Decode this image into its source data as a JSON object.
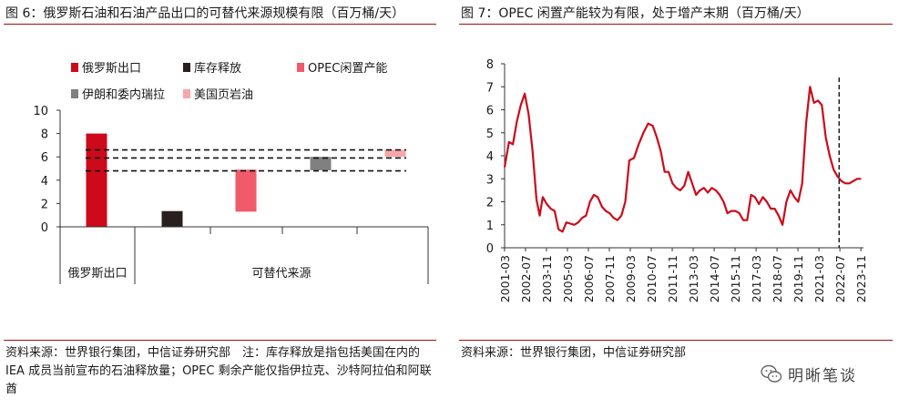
{
  "left": {
    "title": "图 6：俄罗斯石油和石油产品出口的可替代来源规模有限（百万桶/天）",
    "source": "资料来源：世界银行集团，中信证券研究部　注：库存释放是指包括美国在内的 IEA 成员当前宣布的石油释放量；OPEC 剩余产能仅指伊拉克、沙特阿拉伯和阿联酋"
  },
  "right": {
    "title": "图 7：OPEC 闲置产能较为有限，处于增产末期（百万桶/天）",
    "source": "资料来源：世界银行集团，中信证券研究部"
  },
  "watermark": {
    "text": "明晰笔谈",
    "icon": "wechat-icon"
  },
  "chart_data": [
    {
      "type": "bar",
      "subtype": "waterfall",
      "ylim": [
        0,
        10
      ],
      "yticks": [
        "0",
        "2",
        "4",
        "6",
        "8",
        "10"
      ],
      "group_labels": [
        "俄罗斯出口",
        "可替代来源"
      ],
      "legend": [
        {
          "name": "俄罗斯出口",
          "color": "#cc0a1a"
        },
        {
          "name": "库存释放",
          "color": "#2a1f1f"
        },
        {
          "name": "OPEC闲置产能",
          "color": "#f05a6a"
        },
        {
          "name": "伊朗和委内瑞拉",
          "color": "#808080"
        },
        {
          "name": "美国页岩油",
          "color": "#f7a6aa"
        }
      ],
      "bars": [
        {
          "name": "俄罗斯出口",
          "base": 0,
          "top": 8.0,
          "color": "#cc0a1a"
        },
        {
          "name": "库存释放",
          "base": 0,
          "top": 1.35,
          "color": "#2a1f1f"
        },
        {
          "name": "OPEC闲置产能",
          "base": 1.3,
          "top": 4.9,
          "color": "#f05a6a"
        },
        {
          "name": "伊朗和委内瑞拉",
          "base": 4.85,
          "top": 6.0,
          "color": "#808080"
        },
        {
          "name": "美国页岩油",
          "base": 6.0,
          "top": 6.6,
          "color": "#f7a6aa"
        }
      ],
      "reference_lines": [
        4.8,
        5.9,
        6.6
      ]
    },
    {
      "type": "line",
      "ylim": [
        0,
        8
      ],
      "yticks": [
        "0",
        "1",
        "2",
        "3",
        "4",
        "5",
        "6",
        "7",
        "8"
      ],
      "xlim": [
        2001.17,
        2024.0
      ],
      "xticks": [
        "2001-03",
        "2002-07",
        "2003-11",
        "2005-03",
        "2006-07",
        "2007-11",
        "2009-03",
        "2010-07",
        "2011-11",
        "2013-03",
        "2014-07",
        "2015-11",
        "2017-03",
        "2018-07",
        "2019-11",
        "2021-03",
        "2022-07",
        "2023-11"
      ],
      "vline_x": 2022.45,
      "series": [
        {
          "name": "OPEC闲置产能",
          "color": "#cc0a1a",
          "x": [
            2001.17,
            2001.45,
            2001.7,
            2001.95,
            2002.2,
            2002.45,
            2002.7,
            2002.95,
            2003.2,
            2003.4,
            2003.6,
            2003.85,
            2004.1,
            2004.35,
            2004.6,
            2004.85,
            2005.1,
            2005.35,
            2005.6,
            2005.85,
            2006.1,
            2006.35,
            2006.6,
            2006.85,
            2007.1,
            2007.35,
            2007.6,
            2007.85,
            2008.1,
            2008.35,
            2008.6,
            2008.85,
            2009.1,
            2009.4,
            2009.7,
            2010.0,
            2010.3,
            2010.6,
            2010.85,
            2011.1,
            2011.35,
            2011.6,
            2011.85,
            2012.1,
            2012.35,
            2012.6,
            2012.85,
            2013.1,
            2013.35,
            2013.6,
            2013.85,
            2014.1,
            2014.35,
            2014.6,
            2014.85,
            2015.1,
            2015.35,
            2015.6,
            2015.85,
            2016.1,
            2016.35,
            2016.6,
            2016.85,
            2017.1,
            2017.35,
            2017.6,
            2017.85,
            2018.1,
            2018.35,
            2018.6,
            2018.85,
            2019.1,
            2019.35,
            2019.6,
            2019.85,
            2020.1,
            2020.35,
            2020.6,
            2020.85,
            2021.1,
            2021.35,
            2021.6,
            2021.85,
            2022.1,
            2022.35,
            2022.6,
            2022.85,
            2023.1,
            2023.35,
            2023.6,
            2023.85
          ],
          "values": [
            3.5,
            4.6,
            4.5,
            5.5,
            6.2,
            6.7,
            5.8,
            4.2,
            2.1,
            1.4,
            2.2,
            1.9,
            1.7,
            1.6,
            0.8,
            0.7,
            1.1,
            1.05,
            1.0,
            1.1,
            1.3,
            1.4,
            2.0,
            2.3,
            2.2,
            1.8,
            1.6,
            1.5,
            1.3,
            1.2,
            1.4,
            2.0,
            3.8,
            3.9,
            4.5,
            5.0,
            5.4,
            5.3,
            4.8,
            4.2,
            3.3,
            3.3,
            2.8,
            2.6,
            2.5,
            2.7,
            3.3,
            2.8,
            2.3,
            2.5,
            2.6,
            2.4,
            2.6,
            2.5,
            2.3,
            2.0,
            1.5,
            1.6,
            1.6,
            1.5,
            1.2,
            1.2,
            2.3,
            2.2,
            1.9,
            2.2,
            2.0,
            1.7,
            1.7,
            1.4,
            1.0,
            2.0,
            2.5,
            2.2,
            2.0,
            2.8,
            5.4,
            7.0,
            6.3,
            6.4,
            6.2,
            4.8,
            4.0,
            3.4,
            3.1,
            2.9,
            2.8,
            2.8,
            2.9,
            3.0,
            3.0
          ]
        }
      ]
    }
  ]
}
